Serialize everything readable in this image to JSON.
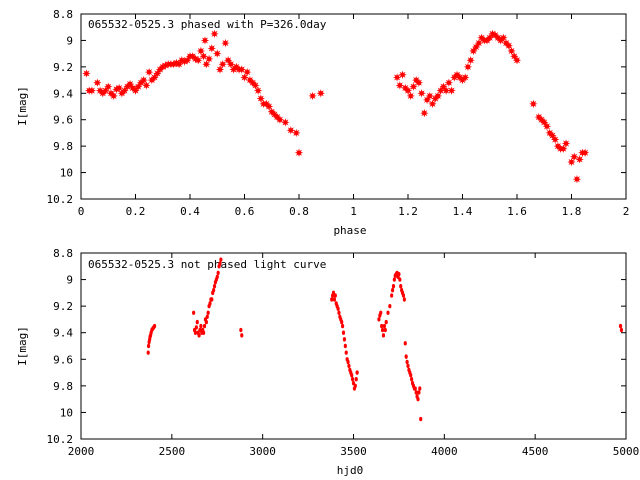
{
  "chart_data": [
    {
      "type": "scatter",
      "title": "065532-0525.3 phased with P=326.0day",
      "xlabel": "phase",
      "ylabel": "I[mag]",
      "xlim": [
        0,
        2
      ],
      "ylim": [
        10.2,
        8.8
      ],
      "y_inverted": true,
      "x_ticks": [
        "0",
        "0.2",
        "0.4",
        "0.6",
        "0.8",
        "1",
        "1.2",
        "1.4",
        "1.6",
        "1.8",
        "2"
      ],
      "y_ticks": [
        "8.8",
        "9",
        "9.2",
        "9.4",
        "9.6",
        "9.8",
        "10",
        "10.2"
      ],
      "marker": "star",
      "color": "#ff0000",
      "series": [
        {
          "x": [
            0.02,
            0.03,
            0.04,
            0.06,
            0.07,
            0.08,
            0.09,
            0.1,
            0.11,
            0.12,
            0.13,
            0.14,
            0.15,
            0.16,
            0.17,
            0.18,
            0.19,
            0.2,
            0.21,
            0.22,
            0.23,
            0.24,
            0.25,
            0.26,
            0.27,
            0.28,
            0.29,
            0.3,
            0.31,
            0.32,
            0.33,
            0.34,
            0.35,
            0.36,
            0.37,
            0.38,
            0.39,
            0.4,
            0.41,
            0.42,
            0.43,
            0.44,
            0.45,
            0.455,
            0.46,
            0.47,
            0.48,
            0.49,
            0.5,
            0.51,
            0.52,
            0.53,
            0.54,
            0.55,
            0.56,
            0.57,
            0.58,
            0.59,
            0.6,
            0.61,
            0.62,
            0.63,
            0.64,
            0.65,
            0.66,
            0.67,
            0.68,
            0.69,
            0.7,
            0.71,
            0.72,
            0.73,
            0.75,
            0.77,
            0.79,
            0.8,
            0.85,
            0.88,
            1.16,
            1.17,
            1.18,
            1.19,
            1.2,
            1.21,
            1.22,
            1.23,
            1.24,
            1.25,
            1.26,
            1.27,
            1.28,
            1.29,
            1.3,
            1.31,
            1.32,
            1.33,
            1.34,
            1.35,
            1.36,
            1.37,
            1.38,
            1.39,
            1.4,
            1.41,
            1.42,
            1.43,
            1.44,
            1.45,
            1.46,
            1.47,
            1.48,
            1.49,
            1.5,
            1.51,
            1.52,
            1.53,
            1.54,
            1.55,
            1.56,
            1.57,
            1.58,
            1.59,
            1.6,
            1.66,
            1.68,
            1.69,
            1.7,
            1.71,
            1.72,
            1.73,
            1.74,
            1.75,
            1.76,
            1.77,
            1.78,
            1.8,
            1.81,
            1.82,
            1.83,
            1.84,
            1.85
          ],
          "y": [
            9.25,
            9.38,
            9.38,
            9.32,
            9.38,
            9.4,
            9.38,
            9.35,
            9.4,
            9.42,
            9.37,
            9.36,
            9.4,
            9.38,
            9.35,
            9.33,
            9.36,
            9.38,
            9.35,
            9.32,
            9.3,
            9.34,
            9.24,
            9.3,
            9.28,
            9.25,
            9.22,
            9.2,
            9.19,
            9.18,
            9.18,
            9.18,
            9.17,
            9.18,
            9.15,
            9.16,
            9.15,
            9.12,
            9.12,
            9.14,
            9.15,
            9.08,
            9.12,
            9.0,
            9.18,
            9.14,
            9.06,
            8.95,
            9.1,
            9.22,
            9.18,
            9.02,
            9.15,
            9.18,
            9.22,
            9.2,
            9.22,
            9.22,
            9.28,
            9.24,
            9.3,
            9.32,
            9.34,
            9.38,
            9.44,
            9.48,
            9.48,
            9.5,
            9.54,
            9.56,
            9.58,
            9.6,
            9.62,
            9.68,
            9.7,
            9.85,
            9.42,
            9.4,
            9.28,
            9.34,
            9.26,
            9.36,
            9.38,
            9.42,
            9.35,
            9.3,
            9.32,
            9.4,
            9.55,
            9.45,
            9.42,
            9.48,
            9.44,
            9.42,
            9.38,
            9.35,
            9.38,
            9.32,
            9.38,
            9.28,
            9.26,
            9.28,
            9.3,
            9.28,
            9.2,
            9.15,
            9.08,
            9.05,
            9.02,
            8.98,
            9.0,
            9.0,
            8.98,
            8.95,
            8.96,
            8.98,
            9.0,
            8.98,
            9.02,
            9.04,
            9.08,
            9.12,
            9.15,
            9.48,
            9.58,
            9.6,
            9.62,
            9.65,
            9.7,
            9.72,
            9.75,
            9.8,
            9.82,
            9.82,
            9.78,
            9.92,
            9.88,
            10.05,
            9.9,
            9.85,
            9.85
          ]
        }
      ]
    },
    {
      "type": "scatter",
      "title": "065532-0525.3 not phased light curve",
      "xlabel": "hjd0",
      "ylabel": "I[mag]",
      "xlim": [
        2000,
        5000
      ],
      "ylim": [
        10.2,
        8.8
      ],
      "y_inverted": true,
      "x_ticks": [
        "2000",
        "2500",
        "3000",
        "3500",
        "4000",
        "4500",
        "5000"
      ],
      "y_ticks": [
        "8.8",
        "9",
        "9.2",
        "9.4",
        "9.6",
        "9.8",
        "10",
        "10.2"
      ],
      "marker": "dot",
      "color": "#ff0000",
      "series": [
        {
          "x": [
            2370,
            2372,
            2375,
            2378,
            2380,
            2383,
            2386,
            2390,
            2395,
            2400,
            2405,
            2620,
            2625,
            2630,
            2635,
            2640,
            2645,
            2650,
            2655,
            2660,
            2665,
            2670,
            2675,
            2680,
            2685,
            2690,
            2695,
            2700,
            2705,
            2710,
            2715,
            2720,
            2725,
            2730,
            2735,
            2740,
            2745,
            2750,
            2755,
            2760,
            2765,
            2770,
            2880,
            2885,
            3380,
            3385,
            3390,
            3395,
            3400,
            3405,
            3410,
            3415,
            3420,
            3425,
            3430,
            3435,
            3440,
            3445,
            3450,
            3455,
            3460,
            3465,
            3470,
            3475,
            3480,
            3485,
            3490,
            3495,
            3500,
            3505,
            3510,
            3515,
            3520,
            3640,
            3645,
            3650,
            3655,
            3660,
            3665,
            3670,
            3675,
            3680,
            3690,
            3700,
            3710,
            3715,
            3720,
            3725,
            3730,
            3735,
            3740,
            3745,
            3750,
            3755,
            3760,
            3765,
            3770,
            3775,
            3780,
            3785,
            3790,
            3795,
            3800,
            3805,
            3810,
            3815,
            3820,
            3825,
            3830,
            3835,
            3840,
            3845,
            3850,
            3855,
            3860,
            3865,
            3870,
            4970,
            4975
          ],
          "y": [
            9.55,
            9.5,
            9.47,
            9.45,
            9.43,
            9.42,
            9.4,
            9.38,
            9.37,
            9.36,
            9.35,
            9.25,
            9.38,
            9.4,
            9.36,
            9.32,
            9.4,
            9.42,
            9.38,
            9.35,
            9.4,
            9.38,
            9.4,
            9.35,
            9.3,
            9.32,
            9.28,
            9.25,
            9.2,
            9.18,
            9.15,
            9.15,
            9.1,
            9.08,
            9.05,
            9.02,
            9.0,
            8.98,
            8.95,
            8.9,
            8.88,
            8.85,
            9.38,
            9.42,
            9.15,
            9.12,
            9.1,
            9.15,
            9.12,
            9.18,
            9.2,
            9.22,
            9.25,
            9.28,
            9.3,
            9.32,
            9.35,
            9.4,
            9.45,
            9.5,
            9.55,
            9.6,
            9.62,
            9.65,
            9.68,
            9.7,
            9.72,
            9.75,
            9.78,
            9.82,
            9.8,
            9.75,
            9.7,
            9.3,
            9.27,
            9.25,
            9.35,
            9.38,
            9.42,
            9.35,
            9.38,
            9.32,
            9.25,
            9.2,
            9.12,
            9.08,
            9.05,
            9.0,
            8.97,
            8.96,
            8.95,
            8.98,
            8.96,
            9.0,
            9.05,
            9.08,
            9.1,
            9.12,
            9.15,
            9.48,
            9.58,
            9.62,
            9.65,
            9.68,
            9.7,
            9.72,
            9.75,
            9.78,
            9.8,
            9.82,
            9.82,
            9.85,
            9.88,
            9.9,
            9.85,
            9.82,
            10.05,
            9.35,
            9.38
          ]
        }
      ]
    }
  ]
}
